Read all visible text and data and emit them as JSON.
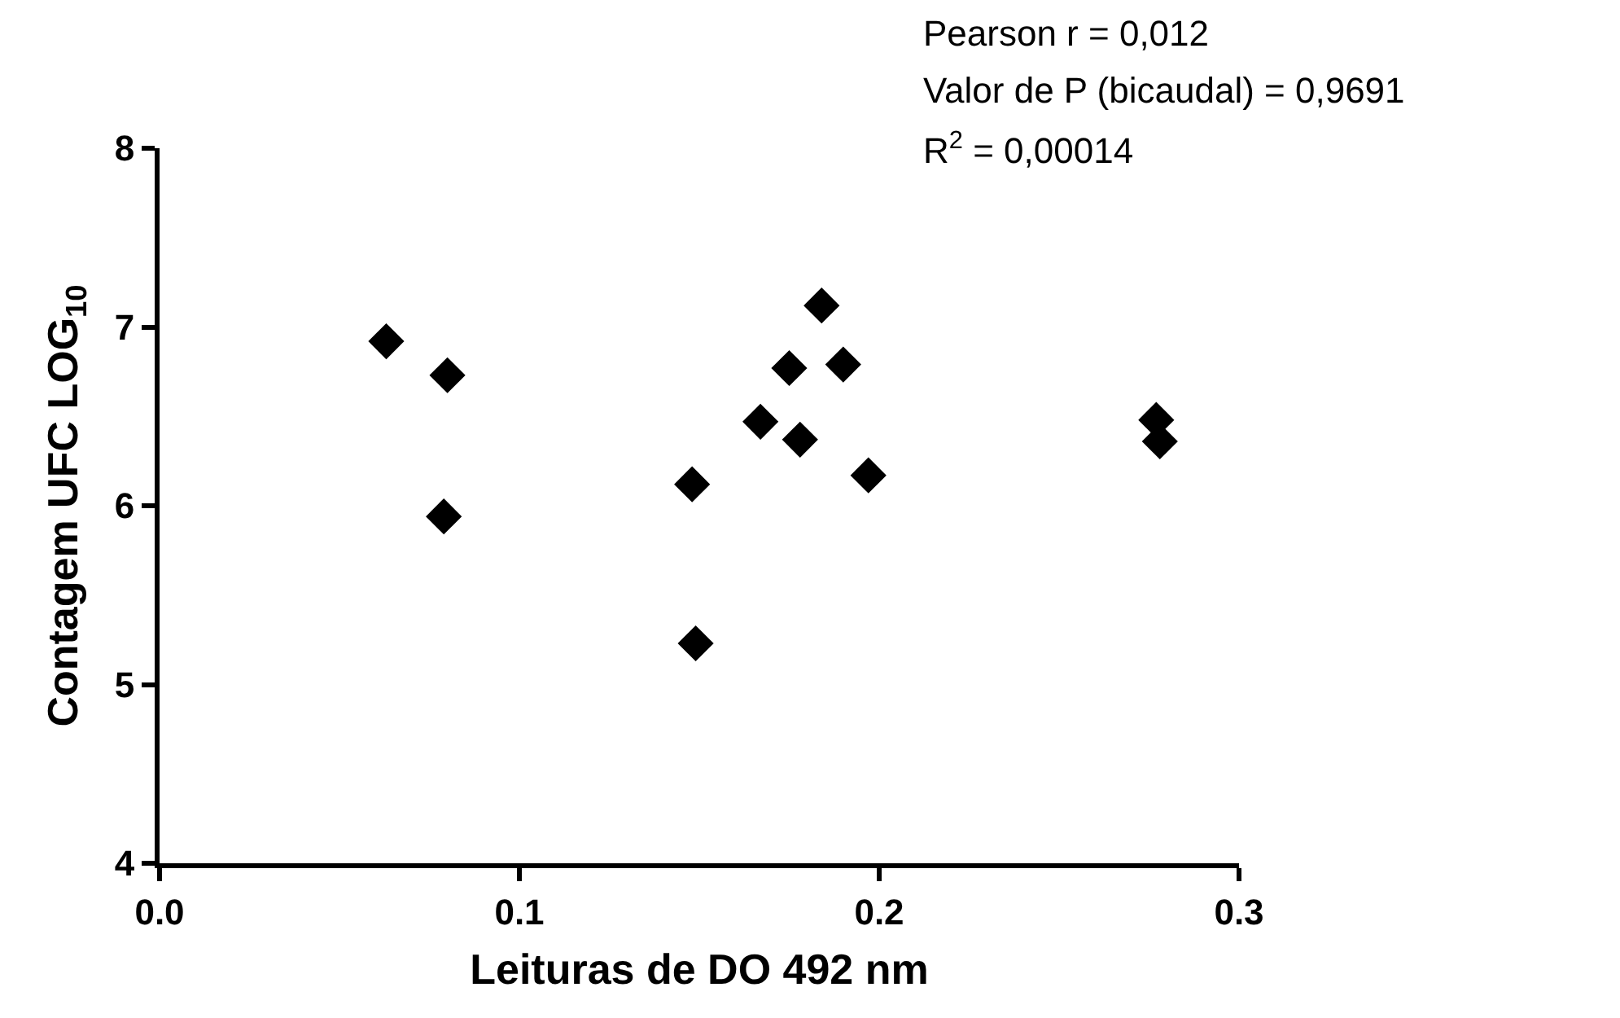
{
  "chart_data": {
    "type": "scatter",
    "xlabel": "Leituras de DO 492 nm",
    "ylabel": "Contagem UFC LOG$_{10}$",
    "annotations": [
      "Pearson r = 0,012",
      "Valor de P (bicaudal) = 0,9691",
      "R$^{2}$ = 0,00014"
    ],
    "x": [
      0.063,
      0.08,
      0.079,
      0.148,
      0.149,
      0.167,
      0.175,
      0.178,
      0.184,
      0.19,
      0.197,
      0.277,
      0.278
    ],
    "series": [
      {
        "color": "#000000",
        "values": [
          6.92,
          6.73,
          5.94,
          6.12,
          5.23,
          6.47,
          6.77,
          6.37,
          7.12,
          6.79,
          6.17,
          6.48,
          6.36
        ]
      }
    ],
    "xlim": [
      0.0,
      0.3
    ],
    "ylim": [
      4,
      8
    ],
    "xticks": [
      {
        "value": 0,
        "label": "0.0"
      },
      0.1,
      0.2,
      0.3
    ],
    "yticks": [
      4,
      5,
      6,
      7,
      8
    ],
    "marker": "diamond"
  }
}
